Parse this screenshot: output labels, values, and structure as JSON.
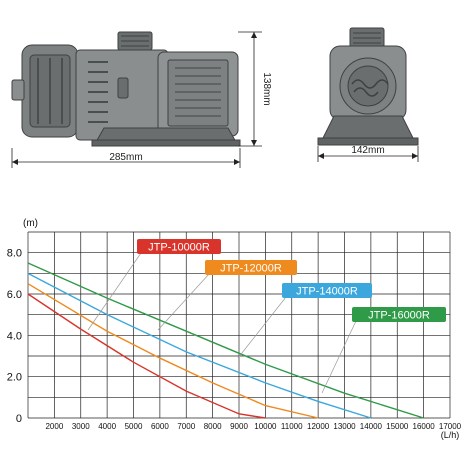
{
  "dimensions": {
    "side_width": "285mm",
    "side_height": "138mm",
    "front_width": "142mm"
  },
  "colors": {
    "body": "#8a8e8f",
    "body_dark": "#5f6364",
    "grid": "#222222"
  },
  "chart_data": {
    "type": "line",
    "ylabel": "(m)",
    "xlabel": "(L/h)",
    "x_range": [
      1000,
      17000
    ],
    "y_range": [
      0,
      9
    ],
    "x_ticks": [
      2000,
      3000,
      4000,
      5000,
      6000,
      7000,
      8000,
      9000,
      10000,
      11000,
      12000,
      13000,
      14000,
      15000,
      16000,
      17000
    ],
    "x_tick_labels": [
      "2000",
      "3000",
      "4000",
      "5000",
      "6000",
      "7000",
      "8000",
      "9000",
      "10000",
      "11000",
      "12000",
      "13000",
      "14000",
      "15000",
      "16000",
      "17000"
    ],
    "y_ticks": [
      0,
      2,
      4,
      6,
      8
    ],
    "y_tick_labels": [
      "0",
      "2.0",
      "4.0",
      "6.0",
      "8.0"
    ],
    "grid": true,
    "series": [
      {
        "name": "JTP-10000R",
        "color": "#d9342b",
        "x": [
          1000,
          3000,
          5000,
          7000,
          9000,
          10000
        ],
        "y": [
          6.0,
          4.3,
          2.7,
          1.3,
          0.2,
          0.0
        ]
      },
      {
        "name": "JTP-12000R",
        "color": "#ef8a1e",
        "x": [
          1000,
          4000,
          6000,
          8000,
          10000,
          12000
        ],
        "y": [
          6.5,
          4.2,
          2.9,
          1.7,
          0.6,
          0.0
        ]
      },
      {
        "name": "JTP-14000R",
        "color": "#3ba7dd",
        "x": [
          1000,
          4000,
          7000,
          10000,
          12000,
          14000
        ],
        "y": [
          7.0,
          5.0,
          3.2,
          1.7,
          0.8,
          0.0
        ]
      },
      {
        "name": "JTP-16000R",
        "color": "#2f9a48",
        "x": [
          1000,
          4000,
          7000,
          10000,
          13000,
          16000
        ],
        "y": [
          7.5,
          5.8,
          4.2,
          2.6,
          1.2,
          0.0
        ]
      }
    ]
  }
}
